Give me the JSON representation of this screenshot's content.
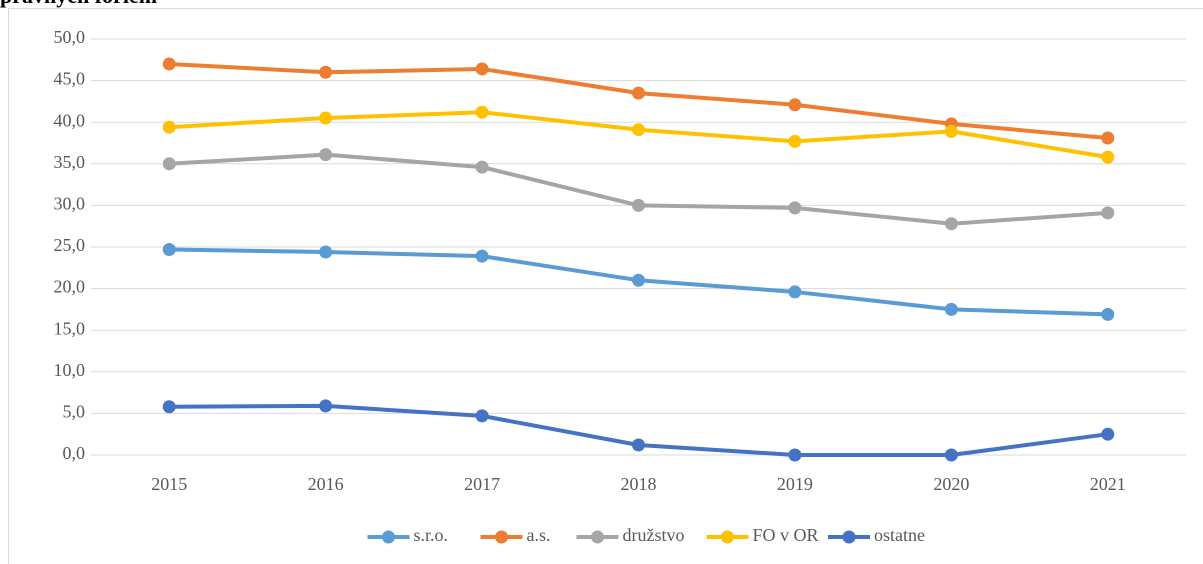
{
  "chart_data": {
    "type": "line",
    "title": "právnych foriem",
    "categories": [
      "2015",
      "2016",
      "2017",
      "2018",
      "2019",
      "2020",
      "2021"
    ],
    "series": [
      {
        "name": "s.r.o.",
        "color": "#5b9bd5",
        "values": [
          24.7,
          24.4,
          23.9,
          21.0,
          19.6,
          17.5,
          16.9
        ]
      },
      {
        "name": "a.s.",
        "color": "#ed7d31",
        "values": [
          47.0,
          46.0,
          46.4,
          43.5,
          42.1,
          39.8,
          38.1
        ]
      },
      {
        "name": "družstvo",
        "color": "#a5a5a5",
        "values": [
          35.0,
          36.1,
          34.6,
          30.0,
          29.7,
          27.8,
          29.1
        ]
      },
      {
        "name": "FO v OR",
        "color": "#ffc000",
        "values": [
          39.4,
          40.5,
          41.2,
          39.1,
          37.7,
          38.9,
          35.8
        ]
      },
      {
        "name": "ostatne",
        "color": "#4472c4",
        "values": [
          5.8,
          5.9,
          4.7,
          1.2,
          0,
          0,
          2.5
        ]
      }
    ],
    "ylim": [
      0,
      50
    ],
    "yticks": [
      {
        "value": 0,
        "label": "0,0"
      },
      {
        "value": 5,
        "label": "5,0"
      },
      {
        "value": 10,
        "label": "10,0"
      },
      {
        "value": 15,
        "label": "15,0"
      },
      {
        "value": 20,
        "label": "20,0"
      },
      {
        "value": 25,
        "label": "25,0"
      },
      {
        "value": 30,
        "label": "30,0"
      },
      {
        "value": 35,
        "label": "35,0"
      },
      {
        "value": 40,
        "label": "40,0"
      },
      {
        "value": 45,
        "label": "45,0"
      },
      {
        "value": 50,
        "label": "50,0"
      }
    ],
    "grid": true,
    "legend": "bottom"
  }
}
